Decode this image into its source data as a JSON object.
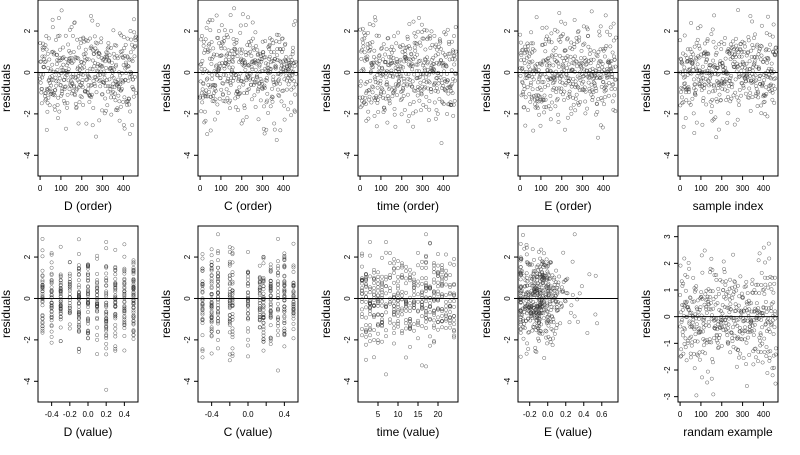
{
  "figure": {
    "layout": "2 rows x 5 columns residual scatter plots"
  },
  "chart_data": [
    {
      "type": "scatter",
      "xlabel": "D (order)",
      "ylabel": "residuals",
      "xlim": [
        -10,
        470
      ],
      "ylim": [
        -5,
        3.5
      ],
      "xticks": [
        0,
        100,
        200,
        300,
        400
      ],
      "xtick_labels": [
        "0",
        "100",
        "200",
        "300",
        "400"
      ],
      "yticks": [
        -4,
        -2,
        0,
        2
      ],
      "ytick_labels": [
        "-4",
        "-2",
        "0",
        "2"
      ],
      "ref_line": 0,
      "n_points": 460,
      "x_kind": "order",
      "x_range": [
        0,
        460
      ],
      "y_sd": 1.1,
      "y_min": -4.8,
      "y_max": 3.1,
      "grid": false,
      "seed": 11
    },
    {
      "type": "scatter",
      "xlabel": "C (order)",
      "ylabel": "residuals",
      "xlim": [
        -10,
        470
      ],
      "ylim": [
        -5,
        3.5
      ],
      "xticks": [
        0,
        100,
        200,
        300,
        400
      ],
      "xtick_labels": [
        "0",
        "100",
        "200",
        "300",
        "400"
      ],
      "yticks": [
        -4,
        -2,
        0,
        2
      ],
      "ytick_labels": [
        "-4",
        "-2",
        "0",
        "2"
      ],
      "ref_line": 0,
      "n_points": 460,
      "x_kind": "order",
      "x_range": [
        0,
        460
      ],
      "y_sd": 1.1,
      "y_min": -4.8,
      "y_max": 3.1,
      "grid": false,
      "seed": 23
    },
    {
      "type": "scatter",
      "xlabel": "time (order)",
      "ylabel": "residuals",
      "xlim": [
        -10,
        470
      ],
      "ylim": [
        -5,
        3.5
      ],
      "xticks": [
        0,
        100,
        200,
        300,
        400
      ],
      "xtick_labels": [
        "0",
        "100",
        "200",
        "300",
        "400"
      ],
      "yticks": [
        -4,
        -2,
        0,
        2
      ],
      "ytick_labels": [
        "-4",
        "-2",
        "0",
        "2"
      ],
      "ref_line": 0,
      "n_points": 460,
      "x_kind": "order",
      "x_range": [
        0,
        460
      ],
      "y_sd": 1.1,
      "y_min": -4.8,
      "y_max": 3.1,
      "grid": false,
      "seed": 37
    },
    {
      "type": "scatter",
      "xlabel": "E (order)",
      "ylabel": "residuals",
      "xlim": [
        -10,
        470
      ],
      "ylim": [
        -5,
        3.5
      ],
      "xticks": [
        0,
        100,
        200,
        300,
        400
      ],
      "xtick_labels": [
        "0",
        "100",
        "200",
        "300",
        "400"
      ],
      "yticks": [
        -4,
        -2,
        0,
        2
      ],
      "ytick_labels": [
        "-4",
        "-2",
        "0",
        "2"
      ],
      "ref_line": 0,
      "n_points": 460,
      "x_kind": "order",
      "x_range": [
        0,
        460
      ],
      "y_sd": 1.1,
      "y_min": -4.8,
      "y_max": 3.1,
      "grid": false,
      "seed": 41
    },
    {
      "type": "scatter",
      "xlabel": "sample index",
      "ylabel": "residuals",
      "xlim": [
        -10,
        470
      ],
      "ylim": [
        -5,
        3.5
      ],
      "xticks": [
        0,
        100,
        200,
        300,
        400
      ],
      "xtick_labels": [
        "0",
        "100",
        "200",
        "300",
        "400"
      ],
      "yticks": [
        -4,
        -2,
        0,
        2
      ],
      "ytick_labels": [
        "-4",
        "-2",
        "0",
        "2"
      ],
      "ref_line": 0,
      "n_points": 460,
      "x_kind": "order",
      "x_range": [
        0,
        460
      ],
      "y_sd": 1.1,
      "y_min": -4.8,
      "y_max": 3.1,
      "grid": false,
      "seed": 53
    },
    {
      "type": "scatter",
      "xlabel": "D (value)",
      "ylabel": "residuals",
      "xlim": [
        -0.55,
        0.55
      ],
      "ylim": [
        -5,
        3.5
      ],
      "xticks": [
        -0.4,
        -0.2,
        0,
        0.2,
        0.4
      ],
      "xtick_labels": [
        "-0.4",
        "-0.2",
        "0.0",
        "0.2",
        "0.4"
      ],
      "yticks": [
        -4,
        -2,
        0,
        2
      ],
      "ytick_labels": [
        "-4",
        "-2",
        "0",
        "2"
      ],
      "ref_line": 0,
      "n_points": 460,
      "x_kind": "discrete",
      "x_levels": [
        -0.5,
        -0.4,
        -0.3,
        -0.2,
        -0.1,
        0,
        0.1,
        0.2,
        0.3,
        0.4,
        0.5
      ],
      "y_sd": 1.1,
      "y_min": -4.8,
      "y_max": 3.1,
      "grid": false,
      "seed": 61
    },
    {
      "type": "scatter",
      "xlabel": "C (value)",
      "ylabel": "residuals",
      "xlim": [
        -0.55,
        0.55
      ],
      "ylim": [
        -5,
        3.5
      ],
      "xticks": [
        -0.4,
        -0.2,
        0,
        0.2,
        0.4
      ],
      "xtick_labels": [
        "-0.4",
        "",
        "0.0",
        "",
        "0.4"
      ],
      "yticks": [
        -4,
        -2,
        0,
        2
      ],
      "ytick_labels": [
        "-4",
        "-2",
        "0",
        "2"
      ],
      "ref_line": 0,
      "n_points": 460,
      "x_kind": "discrete",
      "x_levels": [
        -0.5,
        -0.4,
        -0.33,
        -0.2,
        -0.17,
        0,
        0.13,
        0.17,
        0.25,
        0.33,
        0.4,
        0.5
      ],
      "y_sd": 1.1,
      "y_min": -4.8,
      "y_max": 3.1,
      "grid": false,
      "seed": 71
    },
    {
      "type": "scatter",
      "xlabel": "time (value)",
      "ylabel": "residuals",
      "xlim": [
        0,
        25
      ],
      "ylim": [
        -5,
        3.5
      ],
      "xticks": [
        5,
        10,
        15,
        20
      ],
      "xtick_labels": [
        "5",
        "10",
        "15",
        "20"
      ],
      "yticks": [
        -4,
        -2,
        0,
        2
      ],
      "ytick_labels": [
        "-4",
        "-2",
        "0",
        "2"
      ],
      "ref_line": 0,
      "n_points": 460,
      "x_kind": "discrete",
      "x_levels": [
        1,
        2,
        3,
        4,
        5,
        6,
        7,
        8,
        9,
        10,
        11,
        12,
        13,
        14,
        15,
        16,
        17,
        18,
        19,
        20,
        21,
        22,
        23,
        24
      ],
      "y_sd": 1.1,
      "y_min": -4.8,
      "y_max": 3.1,
      "grid": false,
      "seed": 83
    },
    {
      "type": "scatter",
      "xlabel": "E (value)",
      "ylabel": "residuals",
      "xlim": [
        -0.33,
        0.78
      ],
      "ylim": [
        -5,
        3.5
      ],
      "xticks": [
        -0.2,
        0,
        0.2,
        0.4,
        0.6
      ],
      "xtick_labels": [
        "-0.2",
        "0.0",
        "0.2",
        "0.4",
        "0.6"
      ],
      "yticks": [
        -4,
        -2,
        0,
        2
      ],
      "ytick_labels": [
        "-4",
        "-2",
        "0",
        "2"
      ],
      "ref_line": 0,
      "n_points": 460,
      "x_kind": "skewed",
      "x_center": -0.1,
      "x_spread": 0.12,
      "x_min": -0.3,
      "x_max": 0.75,
      "y_sd": 1.1,
      "y_min": -4.8,
      "y_max": 3.1,
      "grid": false,
      "seed": 97
    },
    {
      "type": "scatter",
      "xlabel": "randam example",
      "ylabel": "residuals",
      "xlim": [
        -10,
        470
      ],
      "ylim": [
        -3.2,
        3.4
      ],
      "xticks": [
        0,
        100,
        200,
        300,
        400
      ],
      "xtick_labels": [
        "0",
        "100",
        "200",
        "300",
        "400"
      ],
      "yticks": [
        -3,
        -2,
        -1,
        0,
        1,
        2,
        3
      ],
      "ytick_labels": [
        "-3",
        "-2",
        "-1",
        "0",
        "1",
        "2",
        "3"
      ],
      "ref_line": 0,
      "n_points": 460,
      "x_kind": "order",
      "x_range": [
        0,
        460
      ],
      "y_sd": 1.0,
      "y_min": -3.0,
      "y_max": 3.0,
      "grid": false,
      "seed": 109
    }
  ]
}
